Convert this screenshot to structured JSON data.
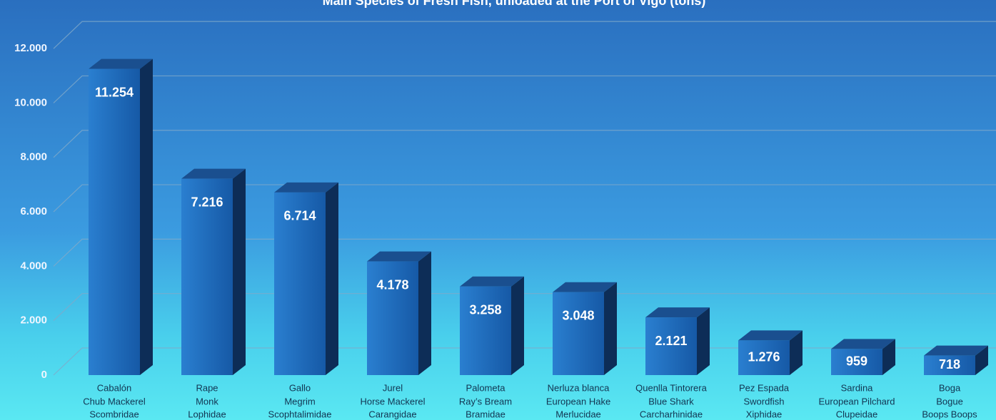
{
  "chart_data": {
    "type": "bar3d",
    "title": "Main Species of Fresh Fish, unloaded at the Port of Vigo (tons)",
    "categories": [
      "Cabalón",
      "Rape",
      "Gallo",
      "Jurel",
      "Palometa",
      "Nerluza blanca",
      "Quenlla Tintorera",
      "Pez Espada",
      "Sardina",
      "Boga"
    ],
    "english_names": [
      "Chub Mackerel",
      "Monk",
      "Megrim",
      "Horse Mackerel",
      "Ray’s Bream",
      "European Hake",
      "Blue Shark",
      "Swordfish",
      "European Pilchard",
      "Bogue"
    ],
    "families": [
      "Scombridae",
      "Lophidae",
      "Scophtalimidae",
      "Carangidae",
      "Bramidae",
      "Merlucidae",
      "Carcharhinidae",
      "Xiphidae",
      "Clupeidae",
      "Boops Boops"
    ],
    "values": [
      11254,
      7216,
      6714,
      4178,
      3258,
      3048,
      2121,
      1276,
      959,
      718
    ],
    "value_labels": [
      "11.254",
      "7.216",
      "6.714",
      "4.178",
      "3.258",
      "3.048",
      "2.121",
      "1.276",
      "959",
      "718"
    ],
    "color": "#1e6cbf",
    "ylim": [
      0,
      13000
    ],
    "yticks": [
      0,
      {
        "value": 2000,
        "label": "2.000"
      },
      {
        "value": 4000,
        "label": "4.000"
      },
      {
        "value": 6000,
        "label": "6.000"
      },
      {
        "value": 8000,
        "label": "8.000"
      },
      {
        "value": 10000,
        "label": "10.000"
      },
      {
        "value": 12000,
        "label": "12.000"
      }
    ],
    "grid": true
  }
}
